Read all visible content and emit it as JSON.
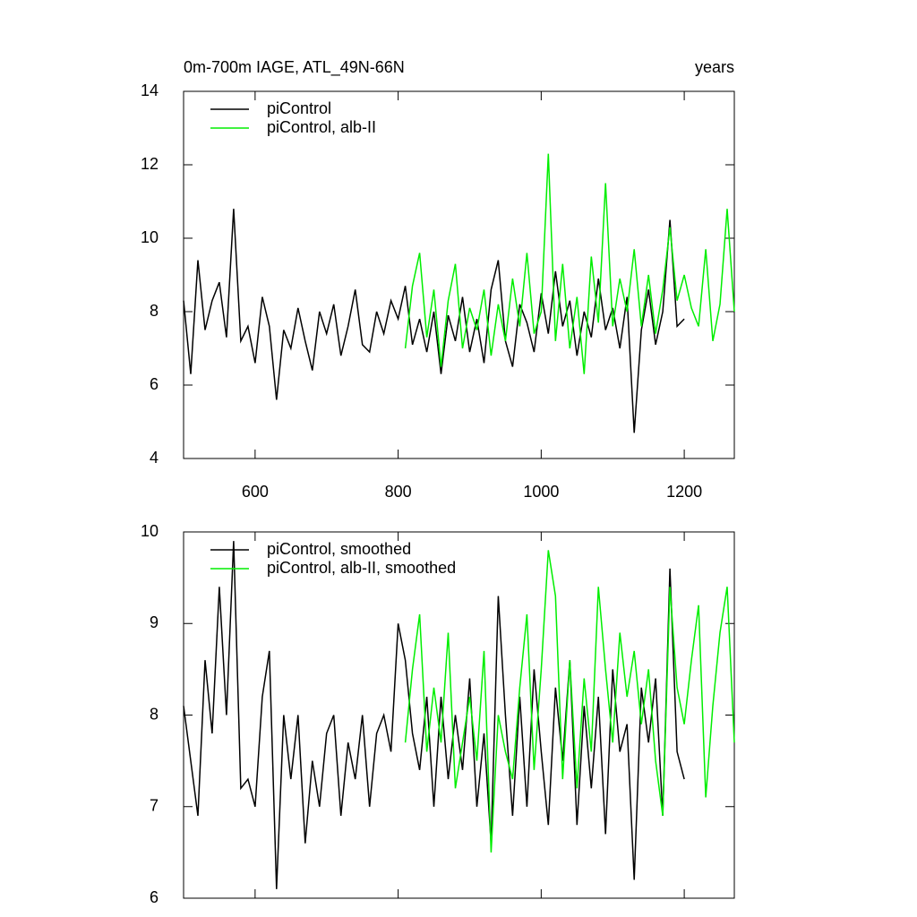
{
  "chart_data": [
    {
      "type": "line",
      "title": "0m-700m IAGE, ATL_49N-66N",
      "title_right": "years",
      "xlim": [
        500,
        1270
      ],
      "xticks": [
        600,
        800,
        1000,
        1200
      ],
      "ylim": [
        4,
        14
      ],
      "yticks": [
        4,
        6,
        8,
        10,
        12,
        14
      ],
      "legend": "top-left",
      "series": [
        {
          "name": "piControl",
          "color": "#000000",
          "x": [
            500,
            510,
            520,
            530,
            540,
            550,
            560,
            570,
            580,
            590,
            600,
            610,
            620,
            630,
            640,
            650,
            660,
            670,
            680,
            690,
            700,
            710,
            720,
            730,
            740,
            750,
            760,
            770,
            780,
            790,
            800,
            810,
            820,
            830,
            840,
            850,
            860,
            870,
            880,
            890,
            900,
            910,
            920,
            930,
            940,
            950,
            960,
            970,
            980,
            990,
            1000,
            1010,
            1020,
            1030,
            1040,
            1050,
            1060,
            1070,
            1080,
            1090,
            1100,
            1110,
            1120,
            1130,
            1140,
            1150,
            1160,
            1170,
            1180,
            1190,
            1200
          ],
          "values": [
            8.3,
            6.3,
            9.4,
            7.5,
            8.3,
            8.8,
            7.3,
            10.8,
            7.2,
            7.6,
            6.6,
            8.4,
            7.6,
            5.6,
            7.5,
            7.0,
            8.1,
            7.2,
            6.4,
            8.0,
            7.4,
            8.2,
            6.8,
            7.6,
            8.6,
            7.1,
            6.9,
            8.0,
            7.4,
            8.3,
            7.8,
            8.7,
            7.1,
            7.8,
            6.9,
            8.0,
            6.3,
            7.9,
            7.2,
            8.4,
            6.9,
            7.8,
            6.6,
            8.6,
            9.4,
            7.2,
            6.5,
            8.2,
            7.7,
            6.9,
            8.5,
            7.4,
            9.1,
            7.6,
            8.3,
            6.8,
            8.0,
            7.3,
            8.9,
            7.5,
            8.1,
            7.0,
            8.4,
            4.7,
            7.5,
            8.6,
            7.1,
            8.0,
            10.5,
            7.6,
            7.8
          ]
        },
        {
          "name": "piControl, alb-II",
          "color": "#00ee00",
          "x": [
            810,
            820,
            830,
            840,
            850,
            860,
            870,
            880,
            890,
            900,
            910,
            920,
            930,
            940,
            950,
            960,
            970,
            980,
            990,
            1000,
            1010,
            1020,
            1030,
            1040,
            1050,
            1060,
            1070,
            1080,
            1090,
            1100,
            1110,
            1120,
            1130,
            1140,
            1150,
            1160,
            1170,
            1180,
            1190,
            1200,
            1210,
            1220,
            1230,
            1240,
            1250,
            1260,
            1270
          ],
          "values": [
            7.0,
            8.7,
            9.6,
            7.3,
            8.6,
            6.5,
            8.3,
            9.3,
            7.0,
            8.1,
            7.5,
            8.6,
            6.8,
            8.2,
            7.2,
            8.9,
            7.6,
            9.6,
            7.4,
            8.0,
            12.3,
            7.2,
            9.3,
            7.0,
            8.4,
            6.3,
            9.5,
            7.7,
            11.5,
            7.6,
            8.9,
            8.0,
            9.7,
            7.6,
            9.0,
            7.4,
            8.6,
            10.3,
            8.3,
            9.0,
            8.1,
            7.6,
            9.7,
            7.2,
            8.2,
            10.8,
            8.0
          ]
        }
      ]
    },
    {
      "type": "line",
      "xlim": [
        500,
        1270
      ],
      "ylim": [
        6,
        10
      ],
      "yticks": [
        6,
        7,
        8,
        9,
        10
      ],
      "legend": "top-left",
      "series": [
        {
          "name": "piControl, smoothed",
          "color": "#000000",
          "x": [
            500,
            510,
            520,
            530,
            540,
            550,
            560,
            570,
            580,
            590,
            600,
            610,
            620,
            630,
            640,
            650,
            660,
            670,
            680,
            690,
            700,
            710,
            720,
            730,
            740,
            750,
            760,
            770,
            780,
            790,
            800,
            810,
            820,
            830,
            840,
            850,
            860,
            870,
            880,
            890,
            900,
            910,
            920,
            930,
            940,
            950,
            960,
            970,
            980,
            990,
            1000,
            1010,
            1020,
            1030,
            1040,
            1050,
            1060,
            1070,
            1080,
            1090,
            1100,
            1110,
            1120,
            1130,
            1140,
            1150,
            1160,
            1170,
            1180,
            1190,
            1200
          ],
          "values": [
            8.1,
            7.5,
            6.9,
            8.6,
            7.8,
            9.4,
            8.0,
            9.9,
            7.2,
            7.3,
            7.0,
            8.2,
            8.7,
            6.1,
            8.0,
            7.3,
            8.0,
            6.6,
            7.5,
            7.0,
            7.8,
            8.0,
            6.9,
            7.7,
            7.3,
            8.0,
            7.0,
            7.8,
            8.0,
            7.6,
            9.0,
            8.6,
            7.8,
            7.4,
            8.2,
            7.0,
            8.2,
            7.3,
            8.0,
            7.4,
            8.4,
            7.0,
            7.8,
            6.6,
            9.3,
            8.0,
            6.9,
            8.2,
            7.0,
            8.5,
            7.6,
            6.8,
            8.3,
            7.5,
            8.6,
            6.8,
            8.1,
            7.2,
            8.2,
            6.7,
            8.5,
            7.6,
            7.9,
            6.2,
            8.3,
            7.7,
            8.4,
            6.9,
            9.6,
            7.6,
            7.3
          ]
        },
        {
          "name": "piControl, alb-II, smoothed",
          "color": "#00ee00",
          "x": [
            810,
            820,
            830,
            840,
            850,
            860,
            870,
            880,
            890,
            900,
            910,
            920,
            930,
            940,
            950,
            960,
            970,
            980,
            990,
            1000,
            1010,
            1020,
            1030,
            1040,
            1050,
            1060,
            1070,
            1080,
            1090,
            1100,
            1110,
            1120,
            1130,
            1140,
            1150,
            1160,
            1170,
            1180,
            1190,
            1200,
            1210,
            1220,
            1230,
            1240,
            1250,
            1260,
            1270
          ],
          "values": [
            7.7,
            8.5,
            9.1,
            7.6,
            8.3,
            7.7,
            8.9,
            7.2,
            7.7,
            8.2,
            7.5,
            8.7,
            6.5,
            8.0,
            7.6,
            7.3,
            8.3,
            9.1,
            7.4,
            8.5,
            9.8,
            9.3,
            7.3,
            8.6,
            7.2,
            8.4,
            7.6,
            9.4,
            8.5,
            7.7,
            8.9,
            8.2,
            8.7,
            7.9,
            8.5,
            7.5,
            6.9,
            9.4,
            8.3,
            7.9,
            8.6,
            9.2,
            7.1,
            8.1,
            8.9,
            9.4,
            7.7
          ]
        }
      ]
    }
  ]
}
